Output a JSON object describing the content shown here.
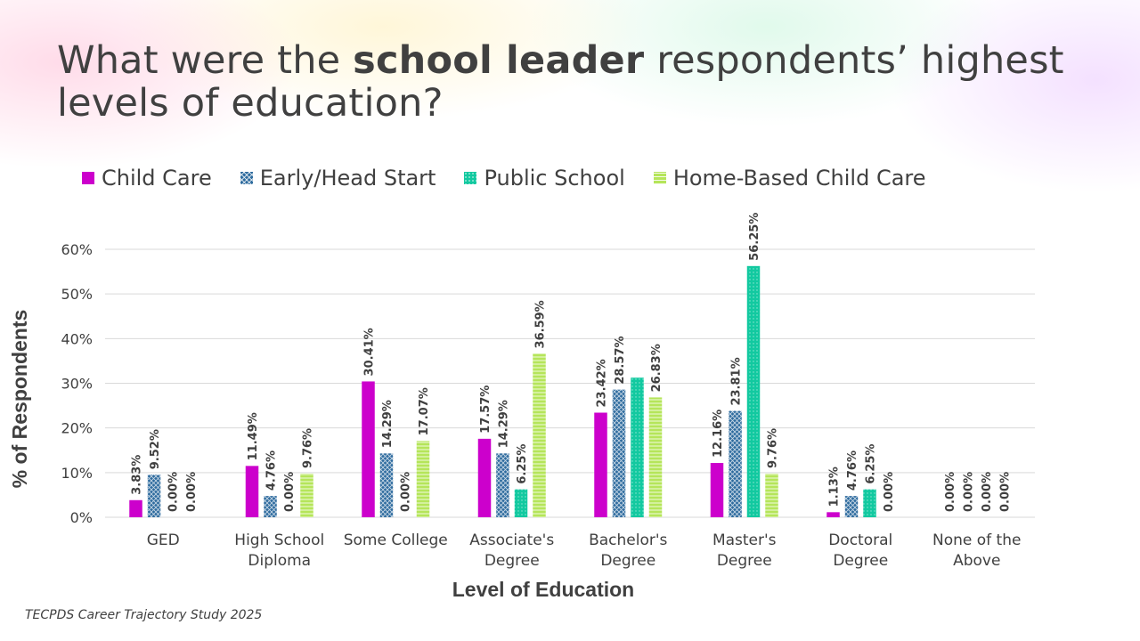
{
  "slide": {
    "title_pre": "What were the ",
    "title_bold": "school leader",
    "title_post": " respondents’ highest levels of education?",
    "source": "TECPDS Career Trajectory Study 2025"
  },
  "colors": {
    "child_care": "#CC00CC",
    "early_head_start": "#2E6B9E",
    "public_school": "#12C9A0",
    "home_based": "#B5E55A",
    "grid": "#D9D9D9",
    "text": "#404040"
  },
  "chart_data": {
    "type": "bar",
    "title": "What were the school leader respondents’ highest levels of education?",
    "xlabel": "Level of Education",
    "ylabel": "% of Respondents",
    "ylim": [
      0,
      60
    ],
    "yticks": [
      "0%",
      "10%",
      "20%",
      "30%",
      "40%",
      "50%",
      "60%"
    ],
    "grid": true,
    "legend_position": "top",
    "categories": [
      [
        "GED"
      ],
      [
        "High School",
        "Diploma"
      ],
      [
        "Some College"
      ],
      [
        "Associate's",
        "Degree"
      ],
      [
        "Bachelor's",
        "Degree"
      ],
      [
        "Master's",
        "Degree"
      ],
      [
        "Doctoral",
        "Degree"
      ],
      [
        "None of the",
        "Above"
      ]
    ],
    "series": [
      {
        "name": "Child Care",
        "values": [
          3.83,
          11.49,
          30.41,
          17.57,
          23.42,
          12.16,
          1.13,
          0.0
        ],
        "labels": [
          "3.83%",
          "11.49%",
          "30.41%",
          "17.57%",
          "23.42%",
          "12.16%",
          "1.13%",
          "0.00%"
        ]
      },
      {
        "name": "Early/Head Start",
        "values": [
          9.52,
          4.76,
          14.29,
          14.29,
          28.57,
          23.81,
          4.76,
          0.0
        ],
        "labels": [
          "9.52%",
          "4.76%",
          "14.29%",
          "14.29%",
          "28.57%",
          "23.81%",
          "4.76%",
          "0.00%"
        ]
      },
      {
        "name": "Public School",
        "values": [
          0.0,
          0.0,
          0.0,
          6.25,
          31.25,
          56.25,
          6.25,
          0.0
        ],
        "labels": [
          "0.00%",
          "0.00%",
          "0.00%",
          "6.25%",
          "",
          "56.25%",
          "6.25%",
          "0.00%"
        ]
      },
      {
        "name": "Home-Based Child Care",
        "values": [
          0.0,
          9.76,
          17.07,
          36.59,
          26.83,
          9.76,
          0.0,
          0.0
        ],
        "labels": [
          "0.00%",
          "9.76%",
          "17.07%",
          "36.59%",
          "26.83%",
          "9.76%",
          "0.00%",
          "0.00%"
        ]
      }
    ]
  }
}
